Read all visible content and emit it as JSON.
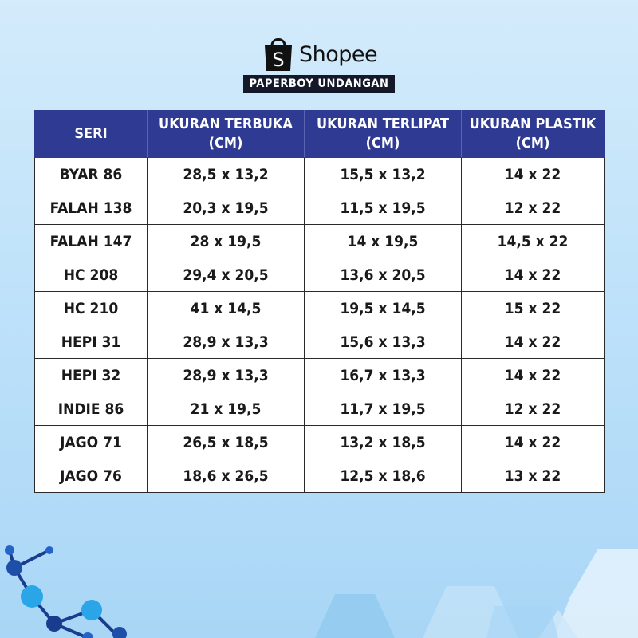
{
  "brand": {
    "logo_letter": "S",
    "name": "Shopee",
    "subtitle": "PAPERBOY UNDANGAN",
    "accent": "#14192a"
  },
  "table": {
    "header_color": "#2f3a92",
    "columns": [
      "SERI",
      "UKURAN TERBUKA\n(CM)",
      "UKURAN TERLIPAT\n(CM)",
      "UKURAN PLASTIK\n(CM)"
    ],
    "rows": [
      [
        "BYAR 86",
        "28,5 x 13,2",
        "15,5 x 13,2",
        "14 x 22"
      ],
      [
        "FALAH 138",
        "20,3 x 19,5",
        "11,5 x 19,5",
        "12 x 22"
      ],
      [
        "FALAH 147",
        "28 x 19,5",
        "14 x 19,5",
        "14,5 x 22"
      ],
      [
        "HC 208",
        "29,4 x 20,5",
        "13,6 x 20,5",
        "14 x 22"
      ],
      [
        "HC 210",
        "41 x 14,5",
        "19,5 x 14,5",
        "15 x 22"
      ],
      [
        "HEPI 31",
        "28,9 x 13,3",
        "15,6 x 13,3",
        "14 x 22"
      ],
      [
        "HEPI 32",
        "28,9 x 13,3",
        "16,7 x 13,3",
        "14 x 22"
      ],
      [
        "INDIE 86",
        "21 x 19,5",
        "11,7 x 19,5",
        "12 x 22"
      ],
      [
        "JAGO 71",
        "26,5 x 18,5",
        "13,2 x 18,5",
        "14 x 22"
      ],
      [
        "JAGO 76",
        "18,6 x 26,5",
        "12,5 x 18,6",
        "13 x 22"
      ]
    ]
  }
}
